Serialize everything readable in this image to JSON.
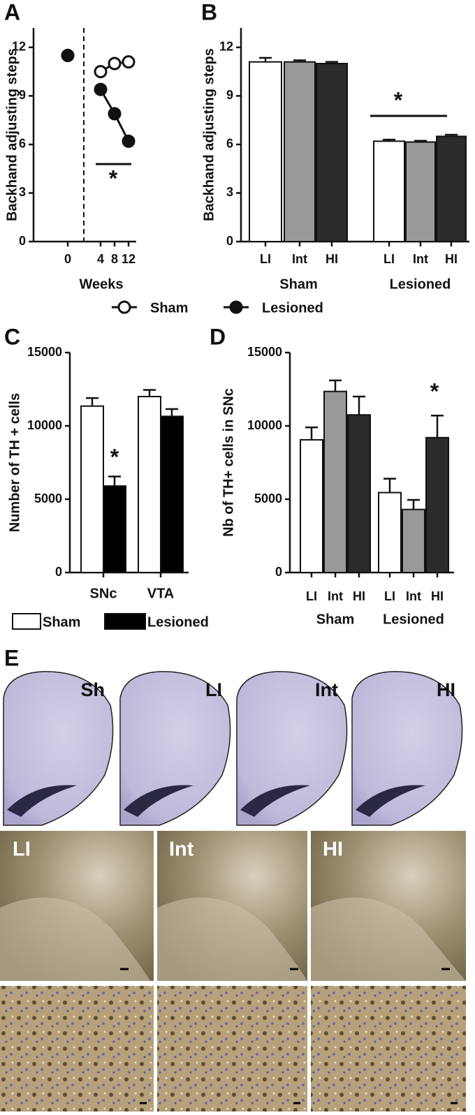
{
  "chart_data": [
    {
      "type": "line",
      "panel": "A",
      "y_label": "Backhand adjusting steps",
      "x_label": "Weeks",
      "categories": [
        "0",
        "4",
        "8",
        "12"
      ],
      "series": [
        {
          "name": "Sham",
          "color": "#ffffff",
          "values": [
            11.5,
            10.5,
            11.0,
            11.1
          ]
        },
        {
          "name": "Lesioned",
          "color": "#111111",
          "values": [
            11.5,
            9.4,
            7.9,
            6.2
          ]
        }
      ],
      "ylim": [
        0,
        13.2
      ],
      "yticks": [
        0,
        3,
        6,
        9,
        12
      ],
      "annotation": "*"
    },
    {
      "type": "bar",
      "panel": "B",
      "y_label": "Backhand adjusting steps",
      "colors": [
        "#ffffff",
        "#999999",
        "#2b2b2b"
      ],
      "groups": [
        {
          "name": "Sham",
          "categories": [
            "LI",
            "Int",
            "HI"
          ],
          "values": [
            11.1,
            11.1,
            11.0
          ],
          "errors": [
            0.25,
            0.1,
            0.1
          ]
        },
        {
          "name": "Lesioned",
          "categories": [
            "LI",
            "Int",
            "HI"
          ],
          "values": [
            6.2,
            6.15,
            6.5
          ],
          "errors": [
            0.1,
            0.08,
            0.1
          ]
        }
      ],
      "ylim": [
        0,
        13.2
      ],
      "yticks": [
        0,
        3,
        6,
        9,
        12
      ],
      "annotation": "*"
    },
    {
      "type": "bar",
      "panel": "C",
      "y_label": "Number of TH + cells",
      "categories": [
        "SNc",
        "VTA"
      ],
      "series": [
        {
          "name": "Sham",
          "color": "#ffffff",
          "values": [
            11350,
            12000
          ],
          "errors": [
            550,
            450
          ]
        },
        {
          "name": "Lesioned",
          "color": "#000000",
          "values": [
            5900,
            10650
          ],
          "errors": [
            650,
            500
          ]
        }
      ],
      "ylim": [
        0,
        15000
      ],
      "yticks": [
        0,
        5000,
        10000,
        15000
      ],
      "annotation": "*"
    },
    {
      "type": "bar",
      "panel": "D",
      "y_label": "Nb of TH+ cells in SNc",
      "colors": [
        "#ffffff",
        "#999999",
        "#2b2b2b"
      ],
      "groups": [
        {
          "name": "Sham",
          "categories": [
            "LI",
            "Int",
            "HI"
          ],
          "values": [
            9050,
            12350,
            10750
          ],
          "errors": [
            850,
            750,
            1250
          ]
        },
        {
          "name": "Lesioned",
          "categories": [
            "LI",
            "Int",
            "HI"
          ],
          "values": [
            5450,
            4300,
            9200
          ],
          "errors": [
            950,
            650,
            1500
          ]
        }
      ],
      "ylim": [
        0,
        15000
      ],
      "yticks": [
        0,
        5000,
        10000,
        15000
      ],
      "annotation": "*"
    }
  ],
  "panel_e": {
    "letter": "E",
    "overview_labels": [
      "Sh",
      "LI",
      "Int",
      "HI"
    ],
    "detail_labels": [
      "LI",
      "Int",
      "HI"
    ]
  }
}
